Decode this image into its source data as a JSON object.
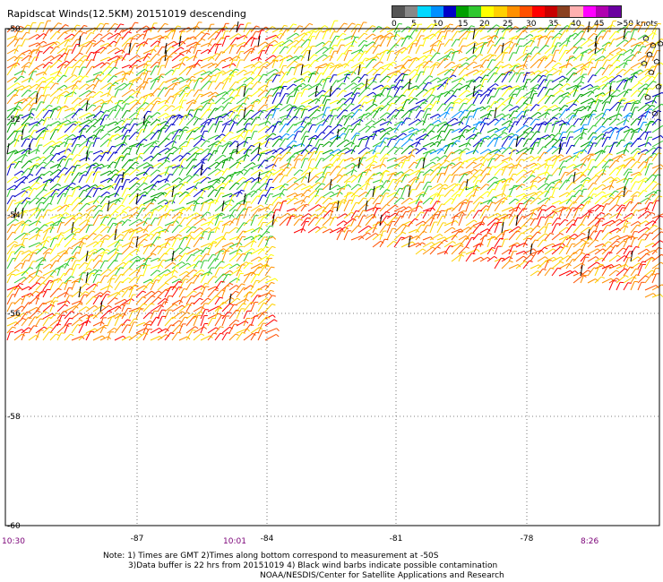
{
  "title": "Rapidscat Winds(12.5KM) 20151019 descending",
  "legend": {
    "colors": [
      "#555555",
      "#888888",
      "#00d8ff",
      "#0090ff",
      "#0000c8",
      "#00a000",
      "#30c830",
      "#ffff00",
      "#ffd000",
      "#ff9000",
      "#ff5000",
      "#ff0000",
      "#c80000",
      "#8a4020",
      "#ffb0b0",
      "#ff00ff",
      "#b000b0",
      "#6a00a0"
    ],
    "labels": [
      "0",
      "5",
      "10",
      "15",
      "20",
      "25",
      "30",
      "35",
      "40",
      "45",
      ">50 knots"
    ]
  },
  "axes": {
    "lon_labels": [
      "-87",
      "-84",
      "-81",
      "-78"
    ],
    "lat_labels": [
      "-50",
      "-52",
      "-54",
      "-56",
      "-58",
      "-60"
    ]
  },
  "times": {
    "left": "10:30",
    "mid": "10:01",
    "right": "8:26"
  },
  "notes": {
    "line1": "Note: 1) Times are GMT 2)Times along bottom correspond to measurement at -50S",
    "line2": "3)Data buffer is 22 hrs from 20151019 4) Black wind barbs indicate possible contamination",
    "line3": "NOAA/NESDIS/Center for Satellite Applications and Research"
  }
}
